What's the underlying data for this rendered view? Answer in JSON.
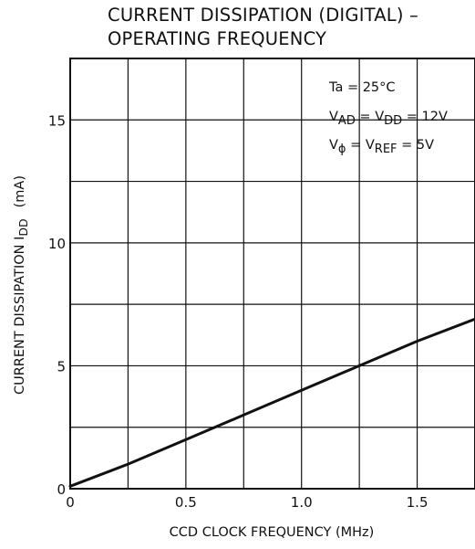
{
  "chart_data": {
    "type": "line",
    "title_line1": "CURRENT DISSIPATION (DIGITAL) –",
    "title_line2": "OPERATING FREQUENCY",
    "xlabel": "CCD CLOCK FREQUENCY   (MHz)",
    "ylabel": "CURRENT DISSIPATION I",
    "ylabel_sub": "DD",
    "ylabel_unit": "(mA)",
    "xlim": [
      0,
      1.75
    ],
    "ylim": [
      0,
      17.5
    ],
    "x_ticks": [
      0,
      0.5,
      1.0,
      1.5
    ],
    "x_tick_labels": [
      "0",
      "0.5",
      "1.0",
      "1.5"
    ],
    "y_ticks": [
      0,
      5,
      10,
      15
    ],
    "y_tick_labels": [
      "0",
      "5",
      "10",
      "15"
    ],
    "grid": true,
    "conditions": {
      "ta": {
        "prefix": "Ta = 25°C"
      },
      "vad": {
        "p1": "V",
        "s1": "AD",
        "p2": " = V",
        "s2": "DD",
        "p3": " = 12V"
      },
      "vphi": {
        "p1": "V",
        "phi": "ϕ",
        "p2": " = V",
        "s2": "REF",
        "p3": " = 5V"
      }
    },
    "series": [
      {
        "x": [
          0,
          0.25,
          0.5,
          0.75,
          1.0,
          1.25,
          1.5,
          1.75
        ],
        "y": [
          0.1,
          1.0,
          2.0,
          3.0,
          4.0,
          5.0,
          6.0,
          6.9
        ]
      }
    ]
  }
}
